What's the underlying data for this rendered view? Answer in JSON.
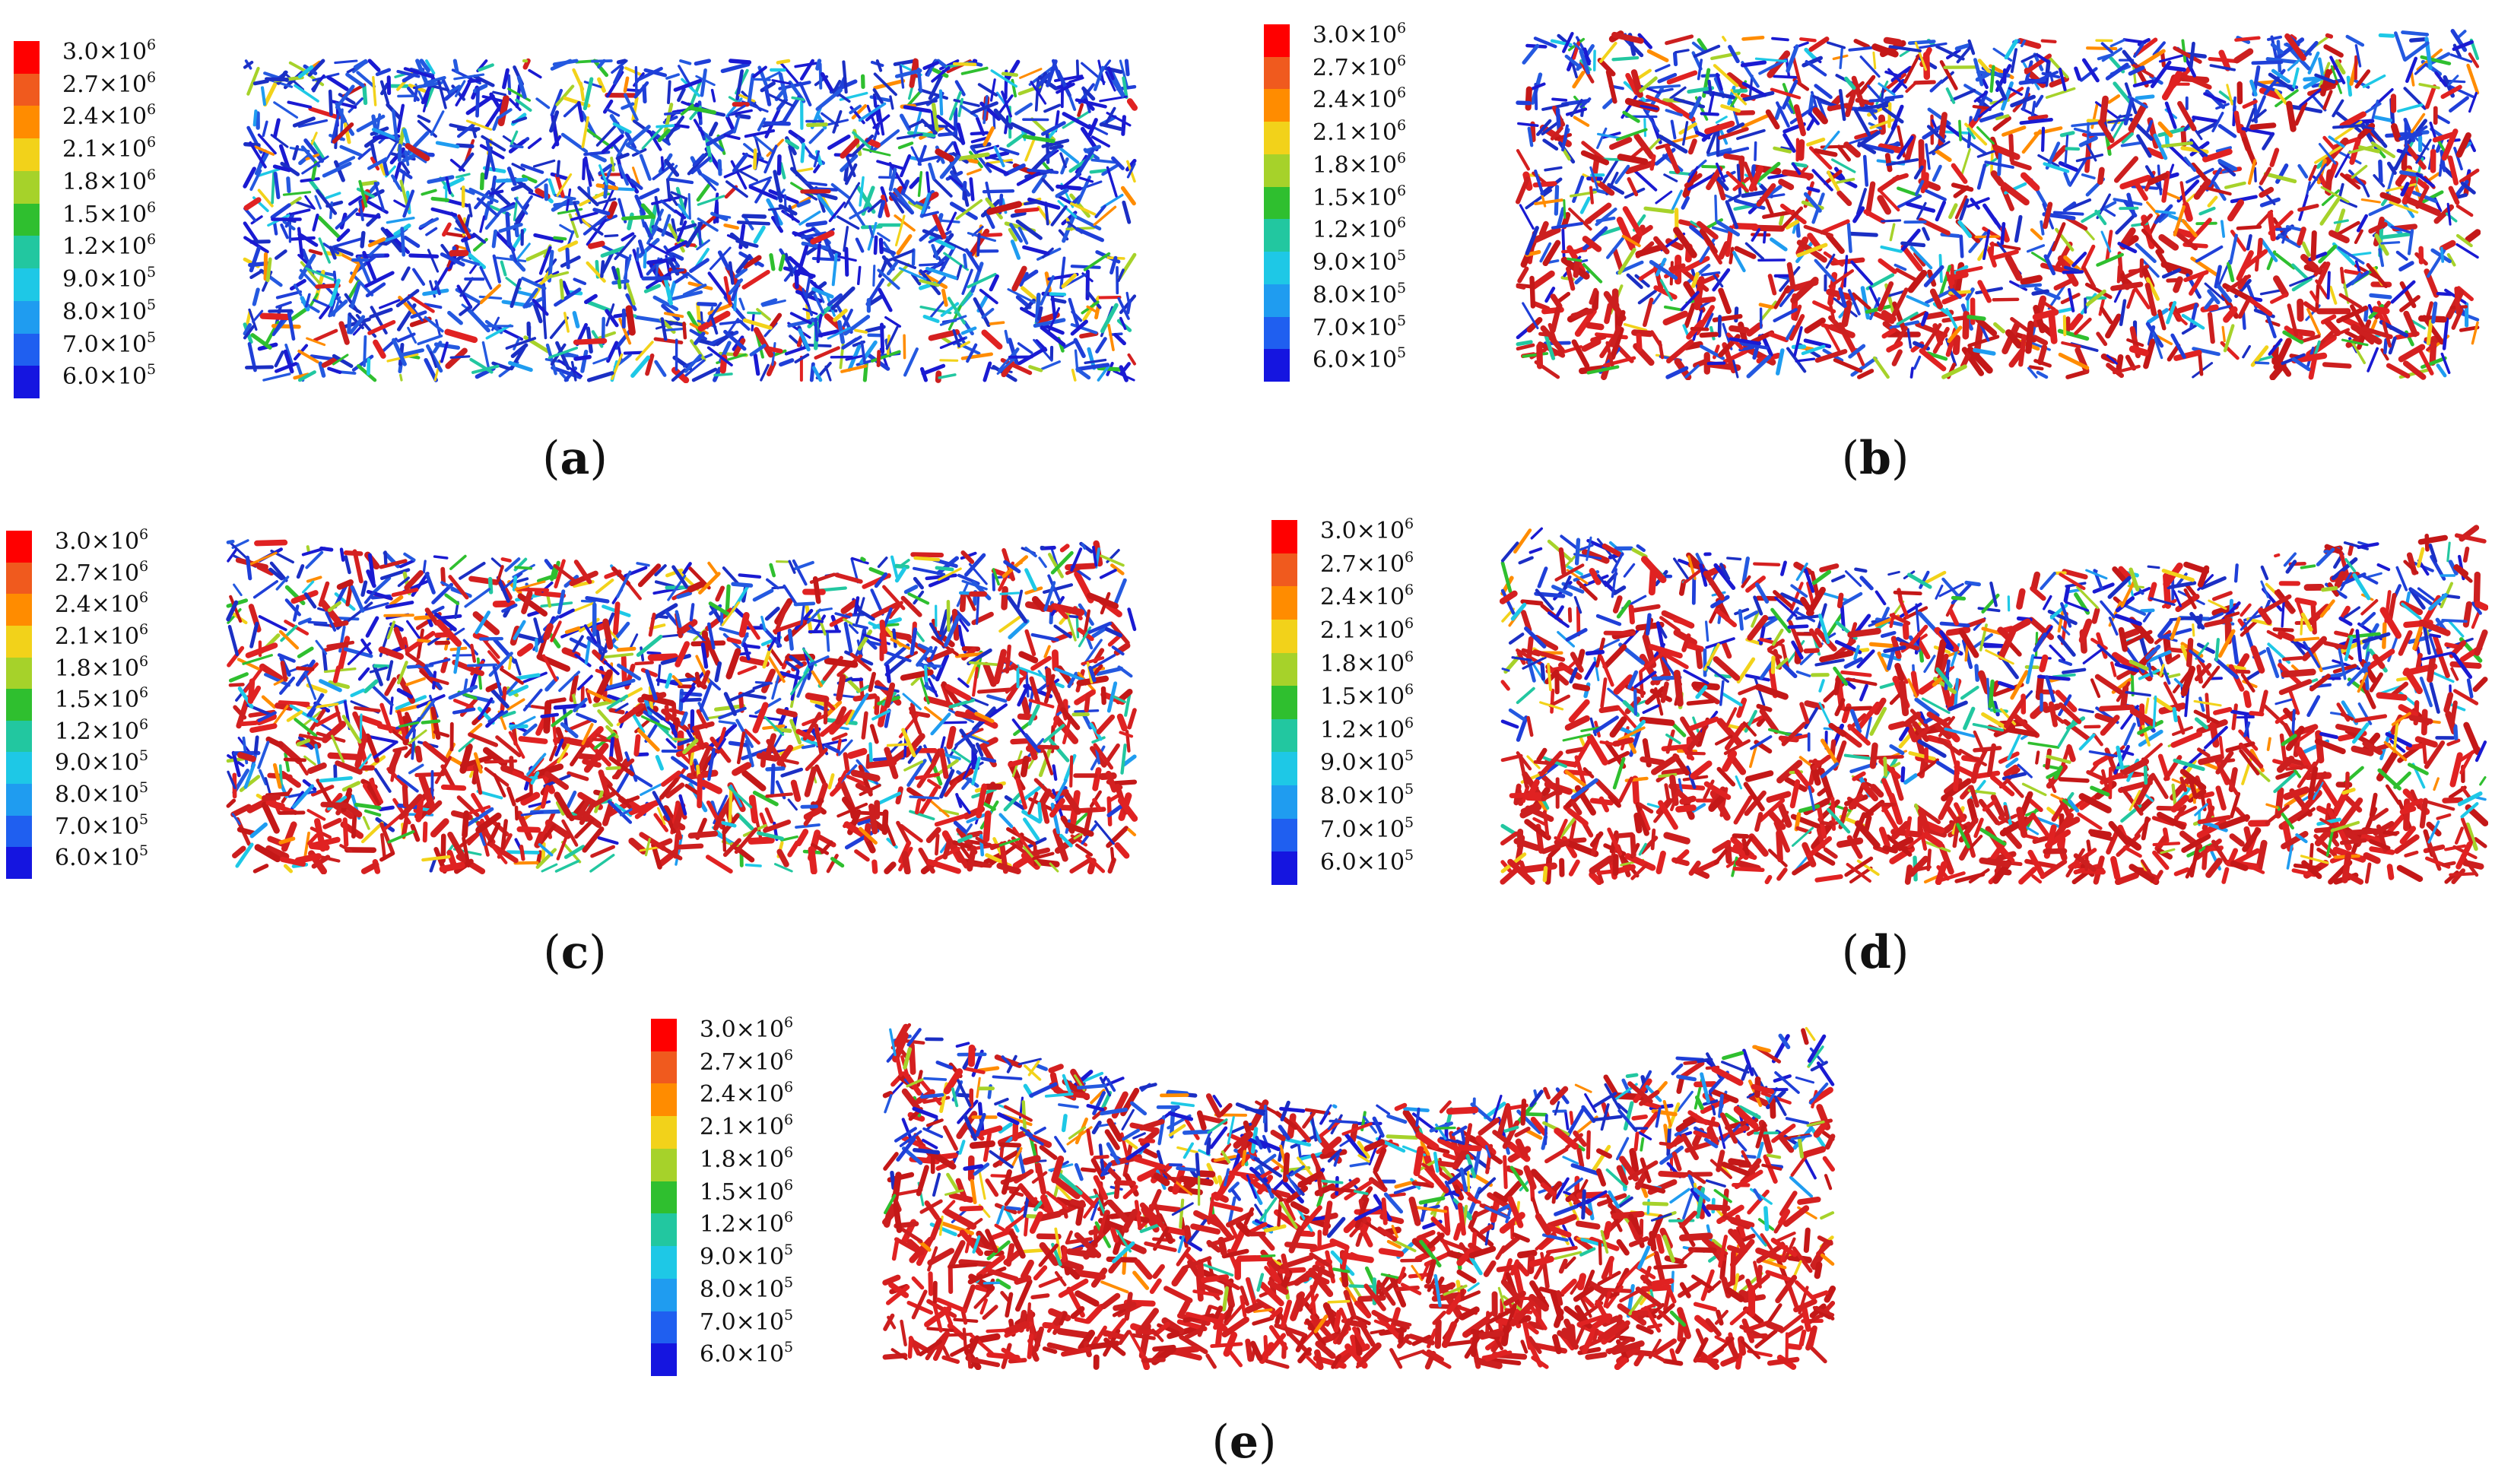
{
  "legend": {
    "entries": [
      {
        "mantissa": "3.0",
        "exponent": "6",
        "color": "#ff0000"
      },
      {
        "mantissa": "2.7",
        "exponent": "6",
        "color": "#f05a1e"
      },
      {
        "mantissa": "2.4",
        "exponent": "6",
        "color": "#ff8c00"
      },
      {
        "mantissa": "2.1",
        "exponent": "6",
        "color": "#f2d21a"
      },
      {
        "mantissa": "1.8",
        "exponent": "6",
        "color": "#a6d22a"
      },
      {
        "mantissa": "1.5",
        "exponent": "6",
        "color": "#2fbf2f"
      },
      {
        "mantissa": "1.2",
        "exponent": "6",
        "color": "#22c7a0"
      },
      {
        "mantissa": "9.0",
        "exponent": "5",
        "color": "#1ec8e6"
      },
      {
        "mantissa": "8.0",
        "exponent": "5",
        "color": "#1f9cf0"
      },
      {
        "mantissa": "7.0",
        "exponent": "5",
        "color": "#1f5ff0"
      },
      {
        "mantissa": "6.0",
        "exponent": "5",
        "color": "#1515e0"
      }
    ]
  },
  "panels": [
    {
      "id": "a",
      "caption": "a",
      "red_fraction": 0.06,
      "top_sag": 0.0
    },
    {
      "id": "b",
      "caption": "b",
      "red_fraction": 0.42,
      "top_sag": 0.03
    },
    {
      "id": "c",
      "caption": "c",
      "red_fraction": 0.52,
      "top_sag": 0.07
    },
    {
      "id": "d",
      "caption": "d",
      "red_fraction": 0.66,
      "top_sag": 0.14
    },
    {
      "id": "e",
      "caption": "e",
      "red_fraction": 0.76,
      "top_sag": 0.24
    }
  ]
}
